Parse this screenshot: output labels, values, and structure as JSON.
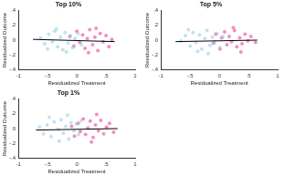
{
  "chart_data": [
    {
      "type": "scatter",
      "title": "Top 10%",
      "x_label": "Residualized Treatment",
      "y_label": "Residualized Outcome",
      "xlim": [
        -1,
        1
      ],
      "ylim": [
        -0.4,
        0.4
      ],
      "xticks": [
        -1,
        {
          "value": -0.5,
          "label": "-.5"
        },
        0,
        {
          "value": 0.5,
          "label": ".5"
        },
        1
      ],
      "yticks": [
        {
          "value": -0.4,
          "label": "-.4"
        },
        {
          "value": -0.2,
          "label": "-.2"
        },
        0,
        {
          "value": 0.2,
          "label": ".2"
        },
        {
          "value": 0.4,
          "label": ".4"
        }
      ],
      "grid": false,
      "series": [
        {
          "color": "#8ecae6",
          "values": [
            [
              -0.62,
              0.03
            ],
            [
              -0.55,
              -0.05
            ],
            [
              -0.48,
              0.08
            ],
            [
              -0.42,
              -0.02
            ],
            [
              -0.38,
              0.12
            ],
            [
              -0.33,
              -0.09
            ],
            [
              -0.28,
              0.04
            ],
            [
              -0.24,
              -0.13
            ],
            [
              -0.2,
              0.1
            ],
            [
              -0.15,
              -0.04
            ],
            [
              -0.11,
              0.06
            ],
            [
              -0.07,
              -0.1
            ],
            [
              -0.03,
              0.02
            ],
            [
              0.02,
              0.09
            ],
            [
              0.08,
              -0.06
            ],
            [
              -0.5,
              -0.12
            ],
            [
              -0.35,
              0.15
            ],
            [
              -0.18,
              -0.16
            ]
          ]
        },
        {
          "color": "#e8338a",
          "values": [
            [
              -0.12,
              0.05
            ],
            [
              -0.05,
              -0.08
            ],
            [
              0.0,
              0.12
            ],
            [
              0.05,
              -0.03
            ],
            [
              0.1,
              0.07
            ],
            [
              0.14,
              -0.11
            ],
            [
              0.18,
              0.02
            ],
            [
              0.22,
              0.14
            ],
            [
              0.27,
              -0.06
            ],
            [
              0.31,
              0.04
            ],
            [
              0.36,
              -0.14
            ],
            [
              0.4,
              0.09
            ],
            [
              0.45,
              -0.02
            ],
            [
              0.5,
              0.06
            ],
            [
              0.55,
              -0.09
            ],
            [
              0.6,
              0.01
            ],
            [
              0.2,
              -0.17
            ],
            [
              0.33,
              0.16
            ]
          ]
        },
        {
          "type": "line",
          "color": "#000000",
          "values": [
            [
              -0.75,
              0.01
            ],
            [
              0.65,
              -0.02
            ]
          ]
        }
      ]
    },
    {
      "type": "scatter",
      "title": "Top 5%",
      "x_label": "Residualized Treatment",
      "y_label": "Residualized Outcome",
      "xlim": [
        -1,
        1
      ],
      "ylim": [
        -0.4,
        0.4
      ],
      "xticks": [
        -1,
        {
          "value": -0.5,
          "label": "-.5"
        },
        0,
        {
          "value": 0.5,
          "label": ".5"
        },
        1
      ],
      "yticks": [
        {
          "value": -0.4,
          "label": "-.4"
        },
        {
          "value": -0.2,
          "label": "-.2"
        },
        0,
        {
          "value": 0.2,
          "label": ".2"
        },
        {
          "value": 0.4,
          "label": ".4"
        }
      ],
      "grid": false,
      "series": [
        {
          "color": "#8ecae6",
          "values": [
            [
              -0.66,
              -0.01
            ],
            [
              -0.58,
              0.06
            ],
            [
              -0.5,
              -0.08
            ],
            [
              -0.45,
              0.1
            ],
            [
              -0.4,
              -0.03
            ],
            [
              -0.34,
              0.07
            ],
            [
              -0.3,
              -0.12
            ],
            [
              -0.25,
              0.02
            ],
            [
              -0.21,
              0.13
            ],
            [
              -0.16,
              -0.07
            ],
            [
              -0.12,
              0.04
            ],
            [
              -0.08,
              -0.02
            ],
            [
              -0.04,
              0.09
            ],
            [
              0.01,
              -0.1
            ],
            [
              0.06,
              0.05
            ],
            [
              -0.53,
              0.14
            ],
            [
              -0.37,
              -0.15
            ],
            [
              -0.19,
              -0.18
            ]
          ]
        },
        {
          "color": "#e8338a",
          "values": [
            [
              -0.1,
              -0.04
            ],
            [
              -0.06,
              0.08
            ],
            [
              0.01,
              -0.12
            ],
            [
              0.04,
              0.03
            ],
            [
              0.09,
              0.11
            ],
            [
              0.13,
              -0.06
            ],
            [
              0.17,
              0.05
            ],
            [
              0.21,
              -0.02
            ],
            [
              0.26,
              0.13
            ],
            [
              0.3,
              -0.09
            ],
            [
              0.35,
              0.03
            ],
            [
              0.39,
              -0.05
            ],
            [
              0.44,
              0.08
            ],
            [
              0.49,
              -0.01
            ],
            [
              0.54,
              0.05
            ],
            [
              0.62,
              -0.03
            ],
            [
              0.24,
              0.17
            ],
            [
              0.37,
              -0.16
            ]
          ]
        },
        {
          "type": "line",
          "color": "#000000",
          "values": [
            [
              -0.75,
              -0.02
            ],
            [
              0.65,
              0.0
            ]
          ]
        }
      ]
    },
    {
      "type": "scatter",
      "title": "Top 1%",
      "x_label": "Residualized Treatment",
      "y_label": "Residualized Outcome",
      "xlim": [
        -1,
        1
      ],
      "ylim": [
        -0.4,
        0.4
      ],
      "xticks": [
        -1,
        {
          "value": -0.5,
          "label": "-.5"
        },
        0,
        {
          "value": 0.5,
          "label": ".5"
        },
        1
      ],
      "yticks": [
        {
          "value": -0.4,
          "label": "-.4"
        },
        {
          "value": -0.2,
          "label": "-.2"
        },
        0,
        {
          "value": 0.2,
          "label": ".2"
        },
        {
          "value": 0.4,
          "label": ".4"
        }
      ],
      "grid": false,
      "series": [
        {
          "color": "#8ecae6",
          "values": [
            [
              -0.64,
              0.02
            ],
            [
              -0.57,
              -0.07
            ],
            [
              -0.51,
              0.05
            ],
            [
              -0.44,
              -0.11
            ],
            [
              -0.39,
              0.09
            ],
            [
              -0.32,
              -0.01
            ],
            [
              -0.27,
              0.12
            ],
            [
              -0.23,
              -0.06
            ],
            [
              -0.19,
              0.03
            ],
            [
              -0.14,
              -0.14
            ],
            [
              -0.1,
              0.08
            ],
            [
              -0.05,
              -0.03
            ],
            [
              -0.01,
              0.06
            ],
            [
              0.03,
              -0.08
            ],
            [
              0.07,
              0.1
            ],
            [
              -0.47,
              0.15
            ],
            [
              -0.3,
              -0.17
            ],
            [
              -0.16,
              0.18
            ]
          ]
        },
        {
          "color": "#e8338a",
          "values": [
            [
              -0.09,
              0.03
            ],
            [
              -0.04,
              -0.1
            ],
            [
              0.02,
              0.07
            ],
            [
              0.06,
              -0.04
            ],
            [
              0.11,
              0.13
            ],
            [
              0.15,
              -0.08
            ],
            [
              0.19,
              0.01
            ],
            [
              0.23,
              0.1
            ],
            [
              0.28,
              -0.12
            ],
            [
              0.32,
              0.05
            ],
            [
              0.37,
              -0.03
            ],
            [
              0.41,
              0.11
            ],
            [
              0.46,
              -0.07
            ],
            [
              0.51,
              0.02
            ],
            [
              0.56,
              0.07
            ],
            [
              0.63,
              -0.05
            ],
            [
              0.25,
              -0.18
            ],
            [
              0.34,
              0.19
            ]
          ]
        },
        {
          "type": "line",
          "color": "#000000",
          "values": [
            [
              -0.7,
              -0.02
            ],
            [
              0.7,
              0.0
            ]
          ]
        }
      ]
    }
  ]
}
